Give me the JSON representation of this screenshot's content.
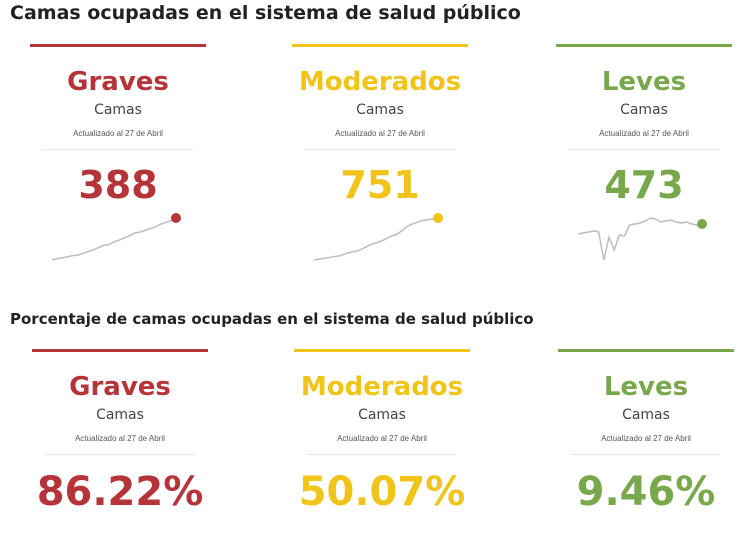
{
  "sections": [
    {
      "title": "Camas ocupadas en el sistema de salud público",
      "cards": [
        {
          "category": "Graves",
          "units": "Camas",
          "updated": "Actualizado al 27 de Abril",
          "value": "388",
          "color": "#b5343a"
        },
        {
          "category": "Moderados",
          "units": "Camas",
          "updated": "Actualizado al 27 de Abril",
          "value": "751",
          "color": "#f0c419"
        },
        {
          "category": "Leves",
          "units": "Camas",
          "updated": "Actualizado al 27 de Abril",
          "value": "473",
          "color": "#79a84c"
        }
      ]
    },
    {
      "title": "Porcentaje de camas ocupadas en el sistema de salud público",
      "cards": [
        {
          "category": "Graves",
          "units": "Camas",
          "updated": "Actualizado al 27 de Abril",
          "value": "86.22%",
          "color": "#b5343a"
        },
        {
          "category": "Moderados",
          "units": "Camas",
          "updated": "Actualizado al 27 de Abril",
          "value": "50.07%",
          "color": "#f0c419"
        },
        {
          "category": "Leves",
          "units": "Camas",
          "updated": "Actualizado al 27 de Abril",
          "value": "9.46%",
          "color": "#79a84c"
        }
      ]
    }
  ],
  "chart_data": [
    {
      "type": "line",
      "series": [
        {
          "values": [
            5,
            8,
            10,
            12,
            15,
            16,
            20,
            24,
            28,
            33,
            38,
            40,
            46,
            50,
            55,
            60,
            66,
            68,
            72,
            76,
            80,
            86,
            90,
            94,
            100
          ]
        }
      ]
    },
    {
      "type": "line",
      "series": [
        {
          "values": [
            2,
            4,
            6,
            8,
            10,
            12,
            16,
            20,
            22,
            26,
            32,
            38,
            42,
            46,
            52,
            58,
            62,
            70,
            80,
            86,
            90,
            94,
            96,
            98,
            100
          ]
        }
      ]
    },
    {
      "type": "line",
      "series": [
        {
          "values": [
            62,
            64,
            66,
            68,
            66,
            10,
            56,
            30,
            60,
            58,
            80,
            82,
            84,
            88,
            94,
            92,
            86,
            88,
            90,
            86,
            84,
            86,
            82,
            80,
            82
          ]
        }
      ]
    }
  ]
}
